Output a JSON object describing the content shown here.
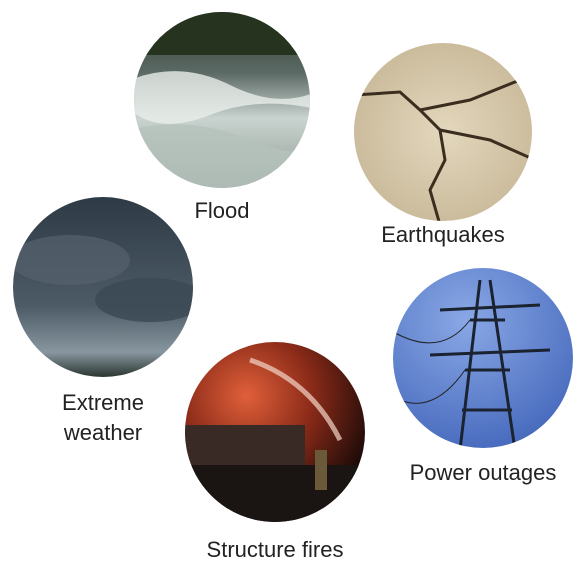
{
  "items": [
    {
      "label": "Flood"
    },
    {
      "label": "Earthquakes"
    },
    {
      "label": [
        "Extreme",
        "weather"
      ]
    },
    {
      "label": "Power outages"
    },
    {
      "label": "Structure fires"
    }
  ]
}
